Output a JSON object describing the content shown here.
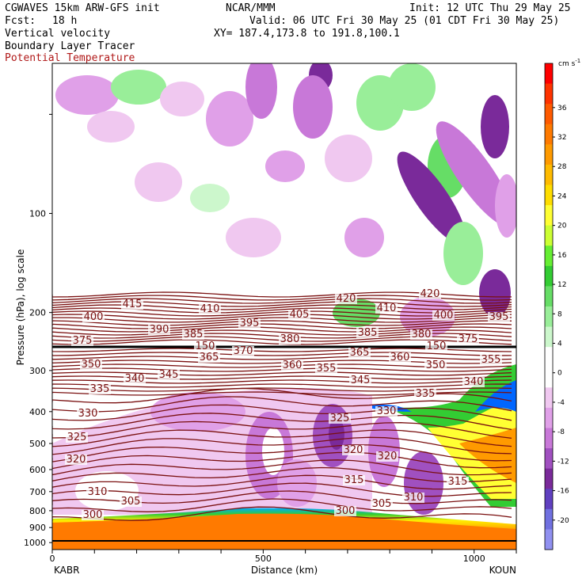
{
  "header": {
    "model": "CGWAVES 15km ARW-GFS init",
    "org": "NCAR/MMM",
    "init": "Init: 12 UTC Thu 29 May 25",
    "fcst_label": "Fcst:",
    "fcst_value": "18 h",
    "valid": "Valid: 06 UTC Fri 30 May 25 (01 CDT Fri 30 May 25)",
    "field1": "Vertical velocity",
    "xy": "XY= 187.4,173.8 to 191.8,100.1",
    "field2": "Boundary Layer Tracer",
    "field3": "Potential Temperature",
    "field3_color": "#b01818"
  },
  "chart_data": {
    "type": "heatmap",
    "xlabel": "Distance (km)",
    "ylabel": "Pressure (hPa), log scale",
    "x_ticks": [
      "0",
      "500",
      "1000"
    ],
    "x_end_labels": [
      "KABR",
      "KOUN"
    ],
    "y_ticks": [
      "100",
      "200",
      "300",
      "400",
      "500",
      "600",
      "700",
      "800",
      "900",
      "1000"
    ],
    "colorbar": {
      "unit": "cm s",
      "unit_superscript": "-1",
      "labels": [
        "36",
        "32",
        "28",
        "24",
        "20",
        "16",
        "12",
        "8",
        "4",
        "0",
        "-4",
        "-8",
        "-12",
        "-16",
        "-20"
      ],
      "colors": [
        "#ff0000",
        "#ff3300",
        "#ff5a00",
        "#ff7a00",
        "#ff9a00",
        "#ffbb00",
        "#ffdd00",
        "#ffff33",
        "#ccff33",
        "#66ee33",
        "#33cc33",
        "#66dd66",
        "#99ee99",
        "#ccf7cc",
        "#ffffff",
        "#ffffff",
        "#f0c8f0",
        "#e0a0e8",
        "#c878d8",
        "#a050c0",
        "#7a2a9a",
        "#6040c0",
        "#7070e0",
        "#9090f0"
      ]
    },
    "theta_labels": [
      "415",
      "410",
      "405",
      "420",
      "410",
      "420",
      "400",
      "390",
      "385",
      "395",
      "385",
      "380",
      "400",
      "395",
      "375",
      "380",
      "375",
      "150",
      "150",
      "370",
      "365",
      "365",
      "360",
      "360",
      "355",
      "350",
      "355",
      "350",
      "340",
      "345",
      "345",
      "340",
      "335",
      "335",
      "330",
      "330",
      "325",
      "325",
      "320",
      "320",
      "320",
      "315",
      "315",
      "310",
      "310",
      "305",
      "305",
      "300",
      "300"
    ]
  }
}
